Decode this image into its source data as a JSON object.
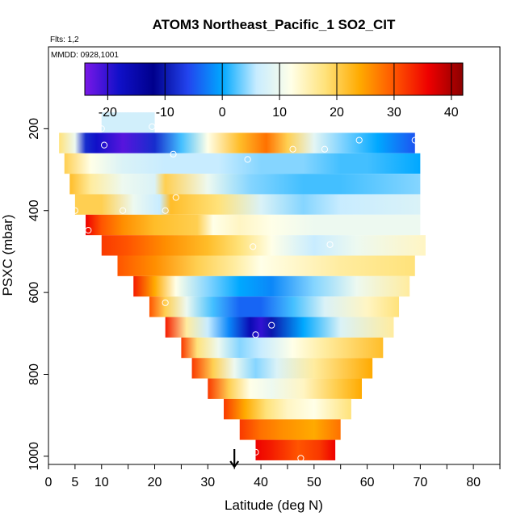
{
  "chart_data": {
    "type": "heatmap",
    "title": "ATOM3 Northeast_Pacific_1 SO2_CIT",
    "flights_note": "Flts: 1,2",
    "dates_note": "MMDD: 0928,1001",
    "xlabel": "Latitude (deg N)",
    "ylabel": "PSXC (mbar)",
    "xlim": [
      0,
      85
    ],
    "ylim": [
      1020,
      0
    ],
    "x_ticks": [
      0,
      5,
      10,
      20,
      30,
      40,
      50,
      60,
      70,
      80
    ],
    "y_ticks": [
      200,
      400,
      600,
      800,
      1000
    ],
    "colorbar": {
      "range": [
        -24,
        42
      ],
      "ticks": [
        -20,
        -10,
        0,
        10,
        20,
        30,
        40
      ],
      "colors": [
        "#7a18e8",
        "#1010c8",
        "#00008c",
        "#2244ee",
        "#00a8ff",
        "#c8ecff",
        "#ffffe8",
        "#ffe27a",
        "#ffaa00",
        "#ff5500",
        "#ee0000",
        "#8c0000"
      ]
    },
    "latitude_marker": 35,
    "curtain_rows": [
      {
        "p": 185,
        "lat": [
          10,
          20
        ],
        "stops": [
          [
            10,
            7
          ],
          [
            20,
            7
          ]
        ]
      },
      {
        "p": 235,
        "lat": [
          2,
          69
        ],
        "stops": [
          [
            2,
            18
          ],
          [
            5,
            10
          ],
          [
            7,
            -8
          ],
          [
            9,
            -18
          ],
          [
            14,
            -22
          ],
          [
            20,
            -8
          ],
          [
            25,
            2
          ],
          [
            30,
            12
          ],
          [
            36,
            22
          ],
          [
            41,
            28
          ],
          [
            45,
            20
          ],
          [
            50,
            9
          ],
          [
            55,
            4
          ],
          [
            62,
            0
          ],
          [
            69,
            -5
          ]
        ]
      },
      {
        "p": 285,
        "lat": [
          3,
          70
        ],
        "stops": [
          [
            3,
            20
          ],
          [
            8,
            12
          ],
          [
            14,
            8
          ],
          [
            22,
            6
          ],
          [
            32,
            6
          ],
          [
            40,
            4
          ],
          [
            48,
            4
          ],
          [
            55,
            2
          ],
          [
            60,
            2
          ],
          [
            70,
            0
          ]
        ]
      },
      {
        "p": 335,
        "lat": [
          4,
          70
        ],
        "stops": [
          [
            4,
            22
          ],
          [
            8,
            16
          ],
          [
            14,
            10
          ],
          [
            20,
            8
          ],
          [
            22,
            20
          ],
          [
            30,
            10
          ],
          [
            38,
            4
          ],
          [
            48,
            2
          ],
          [
            55,
            2
          ],
          [
            70,
            4
          ]
        ]
      },
      {
        "p": 385,
        "lat": [
          5,
          70
        ],
        "stops": [
          [
            5,
            20
          ],
          [
            10,
            20
          ],
          [
            16,
            10
          ],
          [
            21,
            6
          ],
          [
            23,
            22
          ],
          [
            32,
            18
          ],
          [
            40,
            8
          ],
          [
            48,
            4
          ],
          [
            55,
            6
          ],
          [
            70,
            8
          ]
        ]
      },
      {
        "p": 435,
        "lat": [
          7,
          70
        ],
        "stops": [
          [
            7,
            36
          ],
          [
            10,
            30
          ],
          [
            14,
            26
          ],
          [
            20,
            22
          ],
          [
            28,
            20
          ],
          [
            31,
            12
          ],
          [
            36,
            14
          ],
          [
            42,
            12
          ],
          [
            50,
            10
          ],
          [
            60,
            10
          ],
          [
            70,
            10
          ]
        ]
      },
      {
        "p": 485,
        "lat": [
          10,
          71
        ],
        "stops": [
          [
            10,
            32
          ],
          [
            15,
            30
          ],
          [
            22,
            26
          ],
          [
            30,
            22
          ],
          [
            36,
            18
          ],
          [
            42,
            12
          ],
          [
            50,
            6
          ],
          [
            58,
            10
          ],
          [
            71,
            14
          ]
        ]
      },
      {
        "p": 535,
        "lat": [
          13,
          69
        ],
        "stops": [
          [
            13,
            30
          ],
          [
            20,
            26
          ],
          [
            28,
            20
          ],
          [
            35,
            16
          ],
          [
            40,
            12
          ],
          [
            48,
            14
          ],
          [
            55,
            16
          ],
          [
            69,
            18
          ]
        ]
      },
      {
        "p": 585,
        "lat": [
          16,
          68
        ],
        "stops": [
          [
            16,
            34
          ],
          [
            20,
            24
          ],
          [
            24,
            12
          ],
          [
            30,
            4
          ],
          [
            36,
            0
          ],
          [
            42,
            -2
          ],
          [
            50,
            4
          ],
          [
            58,
            10
          ],
          [
            68,
            16
          ]
        ]
      },
      {
        "p": 635,
        "lat": [
          19,
          66
        ],
        "stops": [
          [
            19,
            30
          ],
          [
            22,
            20
          ],
          [
            26,
            10
          ],
          [
            31,
            2
          ],
          [
            36,
            -4
          ],
          [
            40,
            -4
          ],
          [
            46,
            2
          ],
          [
            52,
            8
          ],
          [
            60,
            14
          ],
          [
            66,
            18
          ]
        ]
      },
      {
        "p": 685,
        "lat": [
          22,
          65
        ],
        "stops": [
          [
            22,
            34
          ],
          [
            26,
            16
          ],
          [
            30,
            6
          ],
          [
            34,
            -2
          ],
          [
            38,
            -16
          ],
          [
            40,
            -20
          ],
          [
            42,
            -10
          ],
          [
            48,
            0
          ],
          [
            55,
            8
          ],
          [
            65,
            16
          ]
        ]
      },
      {
        "p": 735,
        "lat": [
          25,
          63
        ],
        "stops": [
          [
            25,
            32
          ],
          [
            28,
            18
          ],
          [
            32,
            10
          ],
          [
            36,
            4
          ],
          [
            40,
            6
          ],
          [
            46,
            12
          ],
          [
            52,
            16
          ],
          [
            63,
            22
          ]
        ]
      },
      {
        "p": 785,
        "lat": [
          27,
          61
        ],
        "stops": [
          [
            27,
            32
          ],
          [
            31,
            20
          ],
          [
            35,
            10
          ],
          [
            39,
            4
          ],
          [
            43,
            8
          ],
          [
            50,
            16
          ],
          [
            61,
            24
          ]
        ]
      },
      {
        "p": 835,
        "lat": [
          30,
          59
        ],
        "stops": [
          [
            30,
            32
          ],
          [
            34,
            20
          ],
          [
            38,
            12
          ],
          [
            42,
            10
          ],
          [
            48,
            14
          ],
          [
            54,
            20
          ],
          [
            59,
            24
          ]
        ]
      },
      {
        "p": 885,
        "lat": [
          33,
          57
        ],
        "stops": [
          [
            33,
            32
          ],
          [
            37,
            24
          ],
          [
            41,
            18
          ],
          [
            45,
            14
          ],
          [
            50,
            12
          ],
          [
            57,
            18
          ]
        ]
      },
      {
        "p": 935,
        "lat": [
          36,
          55
        ],
        "stops": [
          [
            36,
            32
          ],
          [
            40,
            28
          ],
          [
            44,
            26
          ],
          [
            50,
            24
          ],
          [
            55,
            28
          ]
        ]
      },
      {
        "p": 985,
        "lat": [
          39,
          54
        ],
        "stops": [
          [
            39,
            36
          ],
          [
            42,
            34
          ],
          [
            47,
            30
          ],
          [
            51,
            32
          ],
          [
            54,
            36
          ]
        ]
      }
    ],
    "row_height_mbar": 50,
    "markers": [
      {
        "lat": 10,
        "p": 200
      },
      {
        "lat": 19.5,
        "p": 195
      },
      {
        "lat": 10.5,
        "p": 240
      },
      {
        "lat": 23.5,
        "p": 262
      },
      {
        "lat": 58.5,
        "p": 228
      },
      {
        "lat": 69,
        "p": 228
      },
      {
        "lat": 46,
        "p": 250
      },
      {
        "lat": 52,
        "p": 250
      },
      {
        "lat": 37.5,
        "p": 275
      },
      {
        "lat": 24,
        "p": 368
      },
      {
        "lat": 5,
        "p": 400
      },
      {
        "lat": 14,
        "p": 400
      },
      {
        "lat": 22,
        "p": 400
      },
      {
        "lat": 7.5,
        "p": 448
      },
      {
        "lat": 38.5,
        "p": 488
      },
      {
        "lat": 53,
        "p": 483
      },
      {
        "lat": 22,
        "p": 625
      },
      {
        "lat": 42,
        "p": 680
      },
      {
        "lat": 39,
        "p": 703
      },
      {
        "lat": 39,
        "p": 990
      },
      {
        "lat": 47.5,
        "p": 1005
      }
    ]
  }
}
